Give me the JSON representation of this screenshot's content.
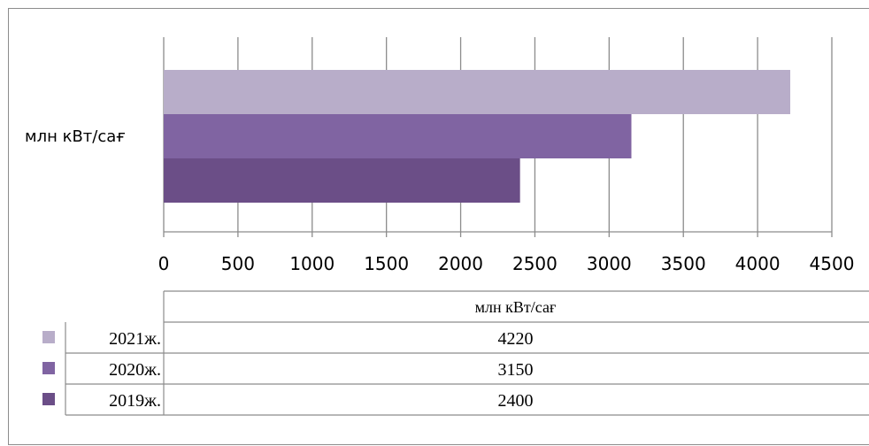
{
  "chart_data": {
    "type": "bar",
    "orientation": "horizontal",
    "categories": [
      "млн кВт/сағ"
    ],
    "series": [
      {
        "name": "2021ж.",
        "values": [
          4220
        ],
        "color": "#b8adc9"
      },
      {
        "name": "2020ж.",
        "values": [
          3150
        ],
        "color": "#8064a2"
      },
      {
        "name": "2019ж.",
        "values": [
          2400
        ],
        "color": "#6b4e87"
      }
    ],
    "xlim": [
      0,
      4500
    ],
    "x_ticks": [
      "0",
      "500",
      "1000",
      "1500",
      "2000",
      "2500",
      "3000",
      "3500",
      "4000",
      "4500"
    ],
    "grid": true,
    "legend": "data-table-below",
    "data_table": {
      "header": "млн кВт/сағ",
      "rows": [
        {
          "label": "2021ж.",
          "value": "4220"
        },
        {
          "label": "2020ж.",
          "value": "3150"
        },
        {
          "label": "2019ж.",
          "value": "2400"
        }
      ]
    }
  }
}
